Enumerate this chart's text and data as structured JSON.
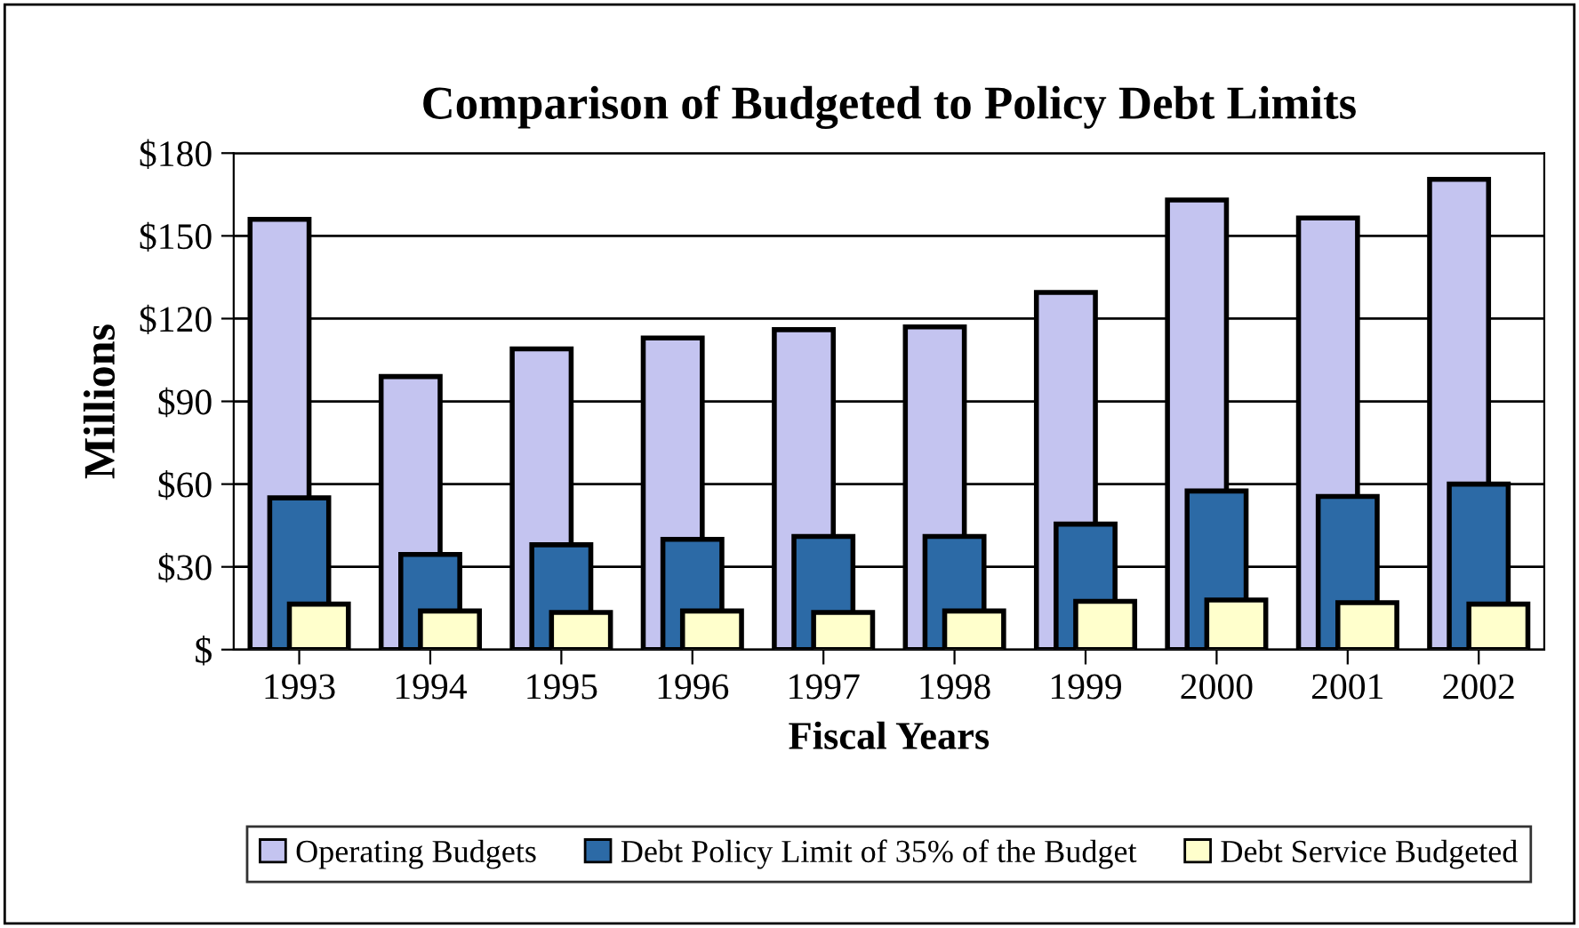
{
  "chart_data": {
    "type": "bar",
    "title": "Comparison of Budgeted to Policy Debt Limits",
    "xlabel": "Fiscal Years",
    "ylabel": "Millions",
    "categories": [
      "1993",
      "1994",
      "1995",
      "1996",
      "1997",
      "1998",
      "1999",
      "2000",
      "2001",
      "2002"
    ],
    "series": [
      {
        "name": "Operating Budgets",
        "color": "#c4c4f0",
        "values": [
          156,
          99,
          109,
          113,
          116,
          117,
          129.5,
          163,
          156.5,
          170.5
        ]
      },
      {
        "name": "Debt Policy Limit of 35% of the Budget",
        "color": "#2c6aa6",
        "values": [
          55,
          34.5,
          38,
          40,
          41,
          41,
          45.5,
          57.5,
          55.5,
          60
        ]
      },
      {
        "name": "Debt Service Budgeted",
        "color": "#ffffcc",
        "values": [
          16.5,
          14,
          13.5,
          14,
          13.5,
          14,
          17.5,
          18,
          17,
          16.5
        ]
      }
    ],
    "ylim": [
      0,
      180
    ],
    "yticks": [
      {
        "value": 0,
        "label": "$"
      },
      {
        "value": 30,
        "label": "$30"
      },
      {
        "value": 60,
        "label": "$60"
      },
      {
        "value": 90,
        "label": "$90"
      },
      {
        "value": 120,
        "label": "$120"
      },
      {
        "value": 150,
        "label": "$150"
      },
      {
        "value": 180,
        "label": "$180"
      }
    ],
    "grid": "y",
    "legend": "bottom"
  }
}
